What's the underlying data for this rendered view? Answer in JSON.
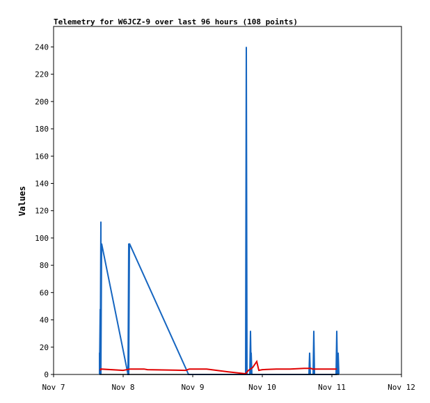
{
  "chart_data": {
    "type": "line",
    "title": "Telemetry for W6JCZ-9 over last 96 hours (108 points)",
    "xlabel": "",
    "ylabel": "Values",
    "xlim": [
      "Nov 7",
      "Nov 12"
    ],
    "ylim": [
      0,
      255
    ],
    "x_ticks": [
      "Nov 7",
      "Nov 8",
      "Nov 9",
      "Nov 10",
      "Nov 11",
      "Nov 12"
    ],
    "y_ticks": [
      0,
      20,
      40,
      60,
      80,
      100,
      120,
      140,
      160,
      180,
      200,
      220,
      240
    ],
    "grid": false,
    "x_units": "days since Nov 7",
    "series": [
      {
        "color": "#1565c0",
        "points": [
          [
            0.66,
            0
          ],
          [
            0.66,
            16
          ],
          [
            0.66,
            0
          ],
          [
            0.67,
            48
          ],
          [
            0.67,
            0
          ],
          [
            0.68,
            112
          ],
          [
            0.68,
            0
          ],
          [
            0.69,
            96
          ],
          [
            1.07,
            0
          ],
          [
            1.08,
            96
          ],
          [
            1.07,
            0
          ],
          [
            1.08,
            0
          ],
          [
            1.09,
            96
          ],
          [
            1.94,
            0
          ],
          [
            2.76,
            0
          ],
          [
            2.77,
            240
          ],
          [
            2.78,
            0
          ],
          [
            2.82,
            0
          ],
          [
            2.83,
            32
          ],
          [
            2.84,
            0
          ],
          [
            2.84,
            16
          ],
          [
            2.85,
            0
          ],
          [
            3.67,
            0
          ],
          [
            3.68,
            16
          ],
          [
            3.69,
            0
          ],
          [
            3.73,
            0
          ],
          [
            3.74,
            32
          ],
          [
            3.75,
            0
          ],
          [
            3.74,
            8
          ],
          [
            3.75,
            0
          ],
          [
            4.06,
            0
          ],
          [
            4.07,
            32
          ],
          [
            4.08,
            0
          ],
          [
            4.09,
            16
          ],
          [
            4.1,
            0
          ]
        ]
      },
      {
        "color": "#e00000",
        "points": [
          [
            0.67,
            3
          ],
          [
            0.68,
            4
          ],
          [
            1.0,
            3
          ],
          [
            1.1,
            4
          ],
          [
            1.3,
            4
          ],
          [
            1.35,
            3.5
          ],
          [
            1.9,
            3
          ],
          [
            1.95,
            4
          ],
          [
            2.2,
            4
          ],
          [
            2.5,
            2
          ],
          [
            2.76,
            0.5
          ],
          [
            2.8,
            3
          ],
          [
            2.86,
            5
          ],
          [
            2.92,
            9.5
          ],
          [
            2.95,
            3
          ],
          [
            3.0,
            3.5
          ],
          [
            3.2,
            4
          ],
          [
            3.4,
            4
          ],
          [
            3.6,
            4.5
          ],
          [
            3.7,
            4.5
          ],
          [
            3.72,
            4
          ],
          [
            4.07,
            4
          ]
        ]
      },
      {
        "color": "#000000",
        "points": [
          [
            0.66,
            0
          ],
          [
            4.1,
            0
          ]
        ]
      }
    ]
  }
}
